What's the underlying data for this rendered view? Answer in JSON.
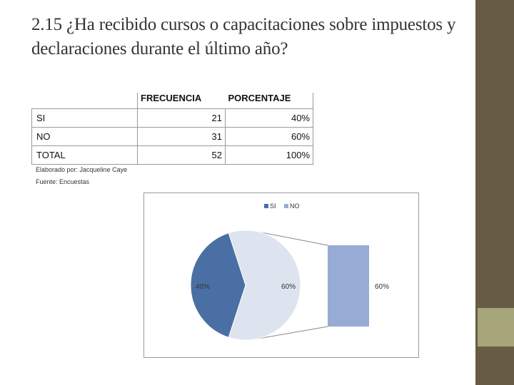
{
  "title": "2.15 ¿Ha recibido cursos o capacitaciones sobre impuestos y declaraciones durante el último año?",
  "table": {
    "headers": [
      "",
      "FRECUENCIA",
      "PORCENTAJE"
    ],
    "rows": [
      [
        "SI",
        "21",
        "40%"
      ],
      [
        "NO",
        "31",
        "60%"
      ],
      [
        "TOTAL",
        "52",
        "100%"
      ]
    ]
  },
  "notes": {
    "elaborado": "Elaborado por: Jacqueline Caye",
    "fuente": "Fuente: Encuestas"
  },
  "colors": {
    "si": "#4a6fa5",
    "no": "#dde4ef",
    "no_bar": "#97abd4",
    "side_bar": "#675c43",
    "side_accent": "#a7a57a"
  },
  "chart_data": {
    "type": "pie",
    "subtype": "pie-of-pie",
    "categories": [
      "SI",
      "NO"
    ],
    "values": [
      40,
      60
    ],
    "legend": [
      "SI",
      "NO"
    ],
    "legend_position": "top",
    "data_labels": [
      "40%",
      "60%"
    ],
    "secondary": {
      "categories": [
        "NO"
      ],
      "values": [
        60
      ],
      "data_labels": [
        "60%"
      ]
    }
  }
}
